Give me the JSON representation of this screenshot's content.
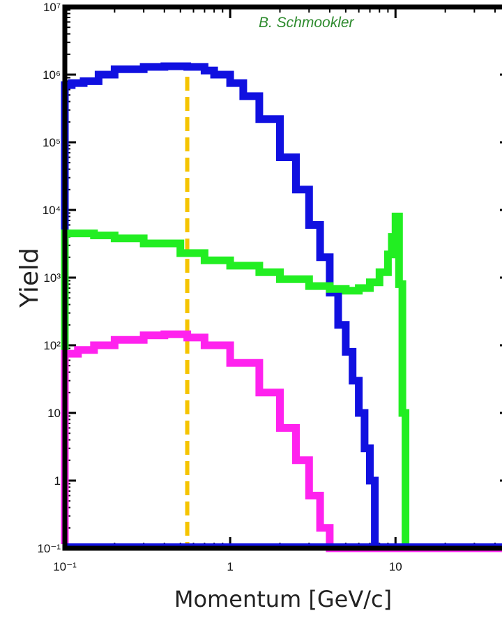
{
  "chart_data": {
    "type": "line",
    "title": "",
    "credit": "B. Schmookler",
    "xlabel": "Momentum [GeV/c]",
    "ylabel": "Yield",
    "xscale": "log",
    "yscale": "log",
    "xlim": [
      0.1,
      50
    ],
    "ylim": [
      0.1,
      10000000
    ],
    "xticks": [
      {
        "value": 0.1,
        "label": "10⁻¹"
      },
      {
        "value": 1,
        "label": "1"
      },
      {
        "value": 10,
        "label": "10"
      }
    ],
    "yticks": [
      {
        "value": 10000000,
        "label": "10⁷"
      },
      {
        "value": 1000000,
        "label": "10⁶"
      },
      {
        "value": 100000,
        "label": "10⁵"
      },
      {
        "value": 10000,
        "label": "10⁴"
      },
      {
        "value": 1000,
        "label": "10³"
      },
      {
        "value": 100,
        "label": "10²"
      },
      {
        "value": 10,
        "label": "10"
      },
      {
        "value": 1,
        "label": "1"
      },
      {
        "value": 0.1,
        "label": "10⁻¹"
      }
    ],
    "vline": {
      "x": 0.55,
      "color": "#f5c400",
      "style": "dashed"
    },
    "series": [
      {
        "color": "#1010e0",
        "x": [
          0.1,
          0.11,
          0.13,
          0.16,
          0.2,
          0.3,
          0.4,
          0.55,
          0.7,
          0.8,
          1.0,
          1.2,
          1.5,
          2.0,
          2.5,
          3.0,
          3.5,
          4.0,
          4.5,
          5.0,
          5.5,
          6.0,
          6.5,
          7.0,
          7.5
        ],
        "y": [
          700000,
          750000,
          800000,
          1000000,
          1200000,
          1300000,
          1330000,
          1300000,
          1150000,
          1000000,
          750000,
          480000,
          220000,
          60000,
          20000,
          6000,
          2000,
          600,
          200,
          80,
          30,
          10,
          3,
          1,
          0.1
        ]
      },
      {
        "color": "#22ee22",
        "x": [
          0.1,
          0.15,
          0.2,
          0.3,
          0.5,
          0.7,
          1.0,
          1.5,
          2.0,
          3.0,
          4.0,
          5.0,
          6.0,
          7.0,
          8.0,
          9.0,
          9.5,
          10.0,
          10.5,
          11.0,
          11.5
        ],
        "y": [
          4500,
          4200,
          3800,
          3200,
          2300,
          1800,
          1500,
          1200,
          950,
          750,
          680,
          640,
          700,
          850,
          1200,
          2200,
          4000,
          8000,
          800,
          10,
          0.1
        ]
      },
      {
        "color": "#ff22ee",
        "x": [
          0.1,
          0.12,
          0.15,
          0.2,
          0.3,
          0.4,
          0.55,
          0.7,
          1.0,
          1.5,
          2.0,
          2.5,
          3.0,
          3.5,
          4.0,
          50
        ],
        "y": [
          75,
          85,
          100,
          120,
          140,
          145,
          130,
          100,
          55,
          20,
          6,
          2,
          0.6,
          0.2,
          0.1,
          0.1
        ]
      }
    ],
    "grid": false,
    "legend": "none"
  }
}
